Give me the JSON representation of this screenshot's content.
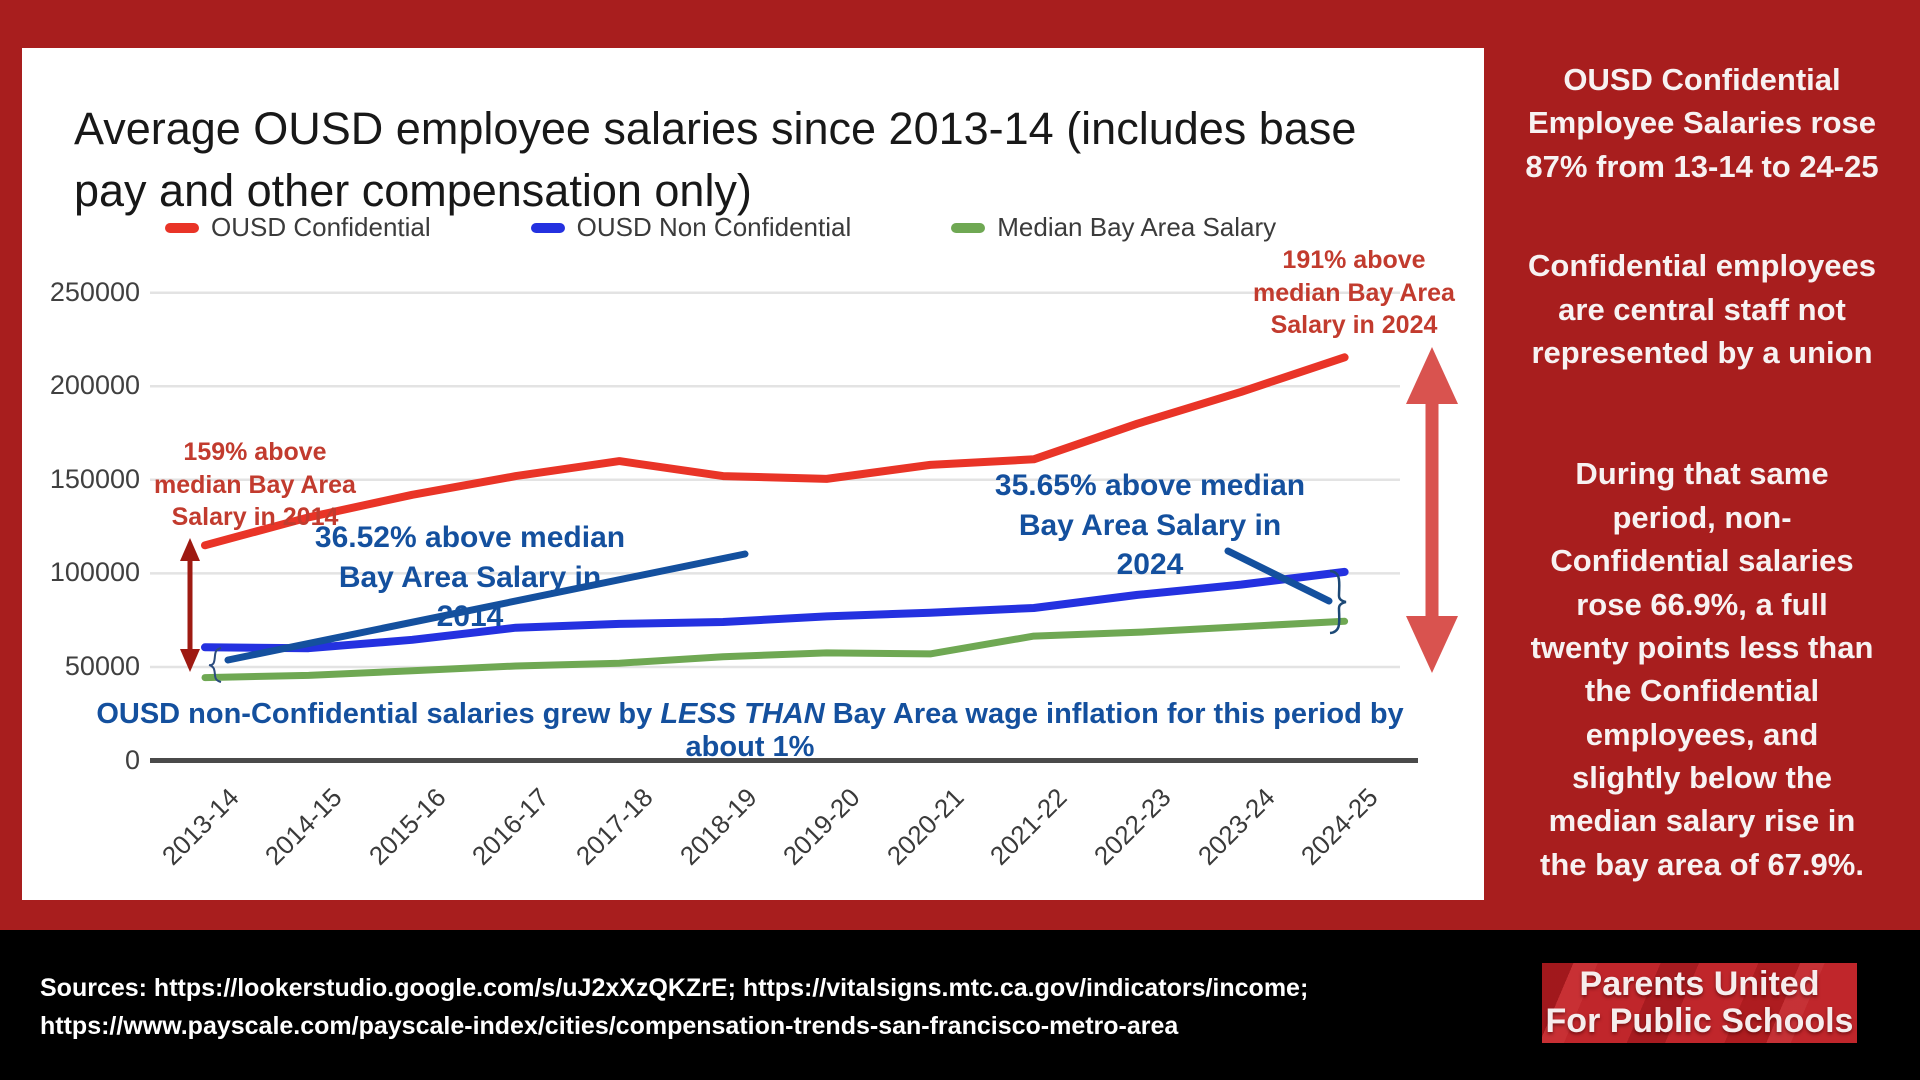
{
  "page": {
    "background": "#A81E1E",
    "footer_background": "#000000",
    "card_background": "#FFFFFF"
  },
  "chart_data": {
    "type": "line",
    "title": "Average OUSD employee salaries since 2013-14 (includes base pay and other compensation only)",
    "title_line1": "Average OUSD employee salaries since 2013-14 (includes base",
    "title_line2": "pay and other compensation only)",
    "categories": [
      "2013-14",
      "2014-15",
      "2015-16",
      "2016-17",
      "2017-18",
      "2018-19",
      "2019-20",
      "2020-21",
      "2021-22",
      "2022-23",
      "2023-24",
      "2024-25"
    ],
    "series": [
      {
        "name": "OUSD Confidential",
        "color": "#E93427",
        "values": [
          115000,
          130000,
          142000,
          152000,
          160000,
          152000,
          150500,
          158000,
          161000,
          180000,
          197000,
          215500
        ]
      },
      {
        "name": "OUSD Non Confidential",
        "color": "#2431E0",
        "values": [
          60500,
          60000,
          64500,
          71000,
          73000,
          74000,
          77000,
          79000,
          81500,
          88500,
          94000,
          100800
        ]
      },
      {
        "name": "Median Bay Area Salary",
        "color": "#6FA853",
        "values": [
          44300,
          45500,
          48000,
          50500,
          52000,
          55500,
          57500,
          57000,
          66500,
          68500,
          71500,
          74400
        ]
      }
    ],
    "ylim": [
      0,
      262500
    ],
    "yticks": [
      0,
      50000,
      100000,
      150000,
      200000,
      250000
    ],
    "ytick_labels": [
      "0",
      "50000",
      "100000",
      "150000",
      "200000",
      "250000"
    ],
    "grid": true,
    "legend_position": "top",
    "annotations": {
      "left_red": {
        "lines": [
          "159% above",
          "median Bay Area",
          "Salary in 2014"
        ],
        "color": "#C23B2E"
      },
      "left_blue": {
        "lines": [
          "36.52% above median",
          "Bay Area Salary in",
          "2014"
        ],
        "color": "#14509E"
      },
      "right_red": {
        "lines": [
          "191% above",
          "median Bay Area",
          "Salary in 2024"
        ],
        "color": "#C23B2E"
      },
      "right_blue": {
        "lines": [
          "35.65% above median",
          "Bay Area Salary in",
          "2024"
        ],
        "color": "#14509E"
      },
      "bottom_note": {
        "pre": "OUSD non-Confidential salaries grew by ",
        "italic": "LESS THAN",
        "post": " Bay Area wage inflation for this period by about 1%",
        "color": "#14509E"
      }
    },
    "arrow_colors": {
      "left_arrow": "#9E1A12",
      "right_arrow": "#D9534F"
    }
  },
  "sidebar": {
    "paragraphs": [
      "OUSD Confidential Employee Salaries rose 87% from 13-14 to 24-25",
      "Confidential employees are central staff not represented by a union",
      "During that same period, non-Confidential salaries rose 66.9%, a full twenty points less than the Confidential employees, and slightly below the median salary rise in the bay area of 67.9%."
    ]
  },
  "footer": {
    "sources_line1": "Sources: https://lookerstudio.google.com/s/uJ2xXzQKZrE; https://vitalsigns.mtc.ca.gov/indicators/income;",
    "sources_line2": "https://www.payscale.com/payscale-index/cities/compensation-trends-san-francisco-metro-area",
    "logo": {
      "line1": "Parents United",
      "line2": "For Public Schools"
    }
  }
}
